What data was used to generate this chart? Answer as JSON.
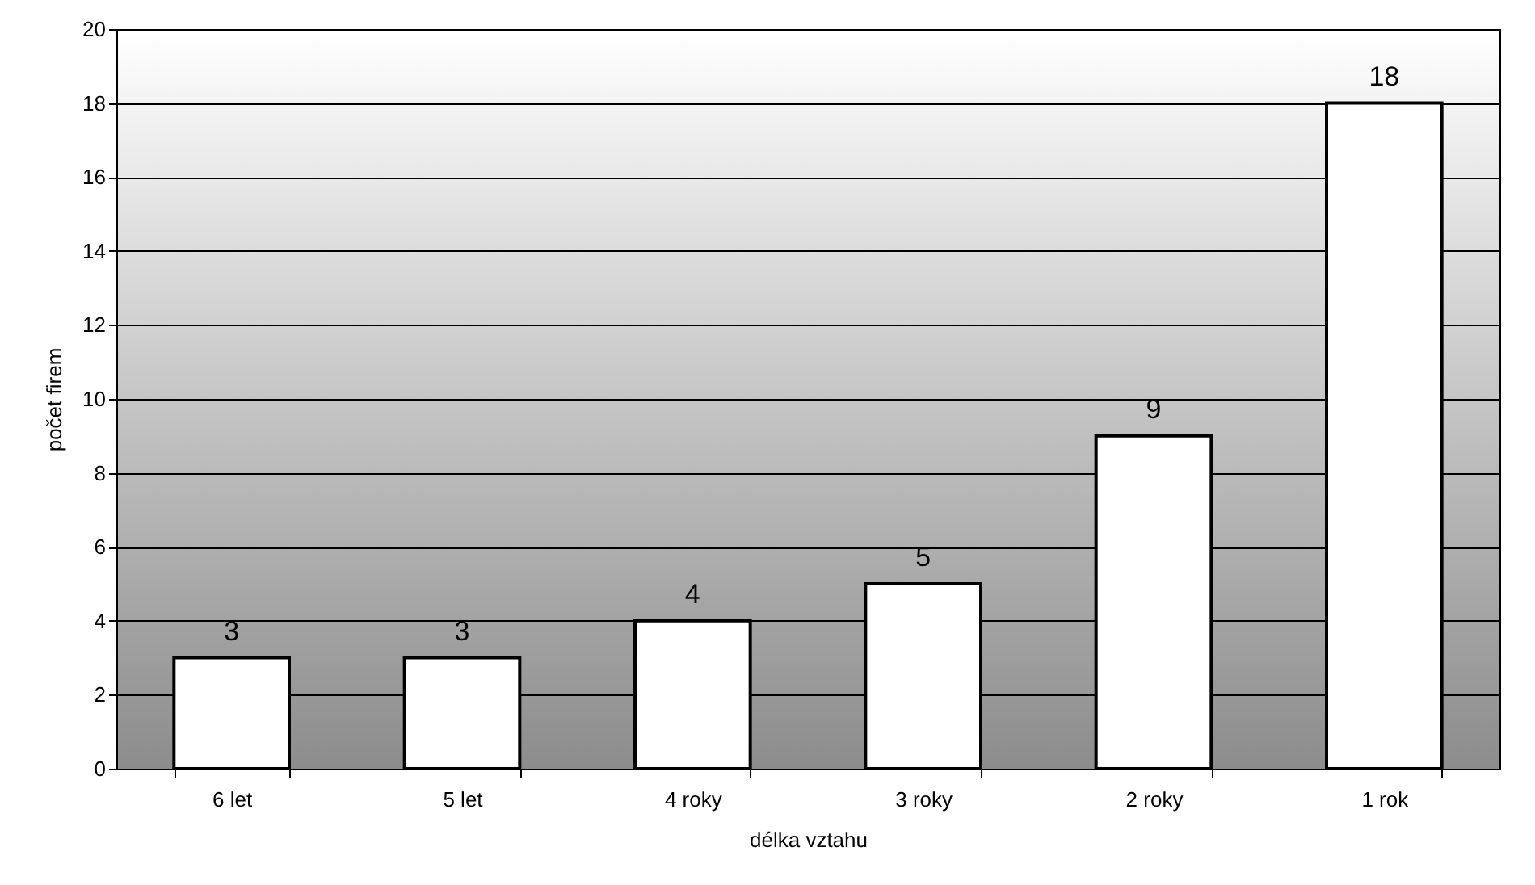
{
  "chart_data": {
    "type": "bar",
    "categories": [
      "6 let",
      "5 let",
      "4 roky",
      "3 roky",
      "2 roky",
      "1 rok"
    ],
    "values": [
      3,
      3,
      4,
      5,
      9,
      18
    ],
    "color": "#ffffff",
    "xlabel": "délka vztahu",
    "ylabel": "počet firem",
    "ylim": [
      0,
      20
    ],
    "yticks": [
      0,
      2,
      4,
      6,
      8,
      10,
      12,
      14,
      16,
      18,
      20
    ],
    "grid": "y",
    "data_labels": true
  }
}
